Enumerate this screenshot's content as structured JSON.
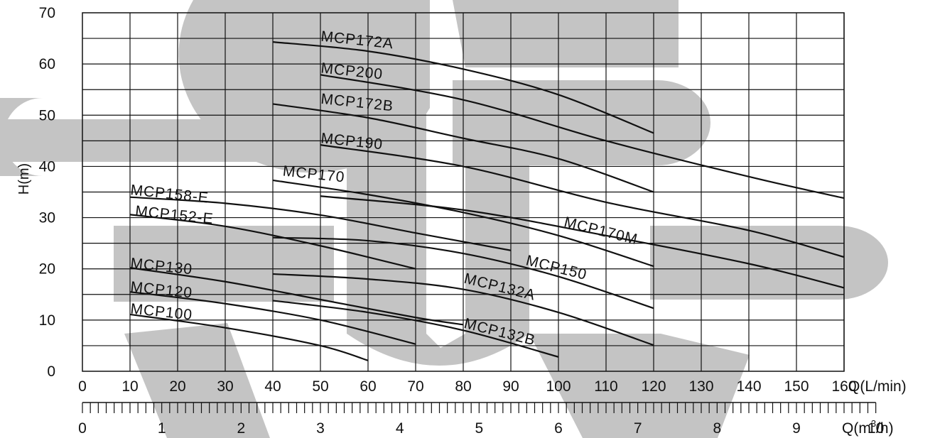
{
  "chart_data": {
    "type": "line",
    "title": "",
    "ylabel": "H(m)",
    "xlabel": "Q(L/min)",
    "x2label": "Q(m",
    "x2label_sup": "3",
    "x2label_tail": "/h)",
    "xlim": [
      0,
      163
    ],
    "ylim": [
      0,
      70
    ],
    "grid": true,
    "yticks": [
      "0",
      "10",
      "20",
      "30",
      "40",
      "50",
      "60",
      "70"
    ],
    "xticks": [
      "0",
      "10",
      "20",
      "30",
      "40",
      "50",
      "60",
      "70",
      "80",
      "90",
      "100",
      "110",
      "120",
      "130",
      "140",
      "150",
      "160"
    ],
    "x2ticks": [
      "0",
      "1",
      "2",
      "3",
      "4",
      "5",
      "6",
      "7",
      "8",
      "9",
      "10"
    ],
    "watermark_color": "#c4c4c4",
    "series": [
      {
        "name": "MCP172A",
        "x": [
          40,
          60,
          80,
          100,
          120
        ],
        "y": [
          64.3,
          62.5,
          59,
          54,
          46.5
        ]
      },
      {
        "name": "MCP200",
        "x": [
          50,
          80,
          110,
          140,
          160
        ],
        "y": [
          57.9,
          53,
          45,
          38,
          33.8
        ]
      },
      {
        "name": "MCP172B",
        "x": [
          40,
          60,
          80,
          100,
          120
        ],
        "y": [
          52.2,
          49.5,
          45.5,
          41.5,
          35
        ]
      },
      {
        "name": "MCP190",
        "x": [
          50,
          80,
          110,
          140,
          160
        ],
        "y": [
          44.2,
          40,
          33,
          27.5,
          22.3
        ]
      },
      {
        "name": "MCP170",
        "x": [
          40,
          60,
          80,
          100,
          120
        ],
        "y": [
          37.3,
          34.5,
          31,
          26.5,
          20.5
        ]
      },
      {
        "name": "MCP170M",
        "x": [
          50,
          80,
          110,
          140,
          160
        ],
        "y": [
          34.2,
          31.5,
          26.5,
          21,
          16.3
        ]
      },
      {
        "name": "MCP158-E",
        "x": [
          10,
          30,
          50,
          70,
          90
        ],
        "y": [
          34,
          32.8,
          30.5,
          27,
          23.6
        ]
      },
      {
        "name": "MCP152-E",
        "x": [
          10,
          30,
          50,
          70
        ],
        "y": [
          30.6,
          28.3,
          24.5,
          20
        ]
      },
      {
        "name": "MCP150",
        "x": [
          40,
          60,
          80,
          100,
          120
        ],
        "y": [
          26.1,
          25.5,
          23,
          18.5,
          12.3
        ]
      },
      {
        "name": "MCP132A",
        "x": [
          40,
          60,
          80,
          100,
          120
        ],
        "y": [
          19,
          18,
          16,
          11.5,
          5.1
        ]
      },
      {
        "name": "MCP130",
        "x": [
          10,
          30,
          50,
          70,
          80
        ],
        "y": [
          20.2,
          17.5,
          14,
          10.5,
          9.1
        ]
      },
      {
        "name": "MCP132B",
        "x": [
          40,
          60,
          80,
          100
        ],
        "y": [
          13.8,
          11.5,
          8,
          2.8
        ]
      },
      {
        "name": "MCP120",
        "x": [
          10,
          30,
          50,
          70
        ],
        "y": [
          15.5,
          13.2,
          10,
          5.3
        ]
      },
      {
        "name": "MCP100",
        "x": [
          10,
          30,
          50,
          60
        ],
        "y": [
          11.1,
          8.5,
          5,
          2.1
        ]
      }
    ],
    "labels": [
      "MCP172A",
      "MCP200",
      "MCP172B",
      "MCP190",
      "MCP170",
      "MCP158-E",
      "MCP152-E",
      "MCP170M",
      "MCP150",
      "MCP132A",
      "MCP132B",
      "MCP130",
      "MCP120",
      "MCP100"
    ]
  }
}
